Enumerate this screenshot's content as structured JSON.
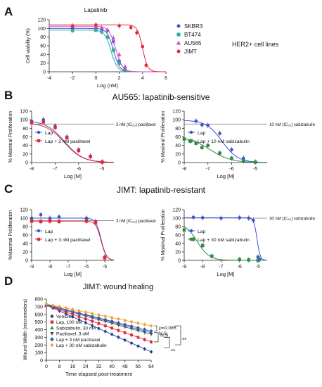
{
  "colors": {
    "blue": "#3b55c8",
    "green": "#2f8a4a",
    "teal": "#34a6a0",
    "magenta": "#c34bcf",
    "red": "#e2263a",
    "orange": "#f2a233",
    "gray": "#555555",
    "darkblue": "#1f3f9a"
  },
  "panels": {
    "A": {
      "letter": "A",
      "title": "Lapatinib",
      "note": "HER2+ cell lines"
    },
    "B": {
      "letter": "B",
      "heading": "AU565: lapatinib-sensitive"
    },
    "C": {
      "letter": "C",
      "heading": "JIMT: lapatinib-resistant"
    },
    "D": {
      "letter": "D",
      "heading": "JIMT: wound healing"
    }
  },
  "chart_data": [
    {
      "id": "A",
      "type": "line",
      "title": "Lapatinib",
      "xlabel": "Log (nM)",
      "ylabel": "Cell viability (%)",
      "xlim": [
        -4,
        6
      ],
      "ylim": [
        0,
        120
      ],
      "xticks": [
        -4,
        -2,
        0,
        2,
        4,
        6
      ],
      "yticks": [
        0,
        20,
        40,
        60,
        80,
        100,
        120
      ],
      "legend_position": "right",
      "series": [
        {
          "name": "SKBR3",
          "color": "#3b55c8",
          "marker": "circle",
          "logIC50": 1.5,
          "top": 100,
          "hill": 1.6,
          "points": [
            [
              -2,
              100
            ],
            [
              0,
              101
            ],
            [
              0.5,
              99
            ],
            [
              1,
              95
            ],
            [
              1.5,
              70
            ],
            [
              2,
              25
            ],
            [
              2.5,
              6
            ]
          ]
        },
        {
          "name": "BT474",
          "color": "#34a6a0",
          "marker": "square",
          "logIC50": 1.3,
          "top": 96,
          "hill": 1.6,
          "points": [
            [
              -2,
              95
            ],
            [
              0,
              96
            ],
            [
              0.5,
              92
            ],
            [
              1,
              80
            ],
            [
              1.5,
              50
            ],
            [
              2,
              20
            ],
            [
              2.5,
              8
            ]
          ]
        },
        {
          "name": "AU565",
          "color": "#c34bcf",
          "marker": "triangle",
          "logIC50": 1.7,
          "top": 105,
          "hill": 1.5,
          "points": [
            [
              -2,
              105
            ],
            [
              0,
              104
            ],
            [
              0.5,
              102
            ],
            [
              1,
              96
            ],
            [
              1.5,
              78
            ],
            [
              2,
              40
            ],
            [
              2.5,
              12
            ]
          ]
        },
        {
          "name": "JIMT",
          "color": "#e2263a",
          "marker": "circle",
          "logIC50": 4.0,
          "top": 108,
          "hill": 2.0,
          "points": [
            [
              -2,
              106
            ],
            [
              0,
              108
            ],
            [
              2,
              106
            ],
            [
              3,
              102
            ],
            [
              3.5,
              90
            ],
            [
              4,
              58
            ],
            [
              4.3,
              15
            ]
          ]
        }
      ]
    },
    {
      "id": "B1",
      "type": "line",
      "xlabel": "Log [M]",
      "ylabel": "% Maximal Proliferation",
      "xlim": [
        -8,
        -4.5
      ],
      "ylim": [
        0,
        120
      ],
      "xticks": [
        -8,
        -7,
        -6,
        -5
      ],
      "yticks": [
        0,
        20,
        40,
        60,
        80,
        100,
        120
      ],
      "reference_line": {
        "y": 90,
        "label": "2 nM (IC₅₀) paclitaxel"
      },
      "legend_position": "right",
      "series": [
        {
          "name": "Lap",
          "color": "#3b55c8",
          "marker": "circle",
          "logIC50": -6.6,
          "top": 98,
          "bottom": 0,
          "hill": 1.1,
          "points": [
            [
              -8,
              97
            ],
            [
              -7.5,
              100
            ],
            [
              -7,
              85
            ],
            [
              -6.5,
              60
            ],
            [
              -6,
              30
            ],
            [
              -5.5,
              15
            ],
            [
              -5,
              2
            ]
          ]
        },
        {
          "name": "Lap + 2 nM paclitaxel",
          "color": "#e2263a",
          "marker": "square",
          "logIC50": -6.6,
          "top": 93,
          "bottom": 0,
          "hill": 1.1,
          "points": [
            [
              -8,
              93
            ],
            [
              -7.5,
              95
            ],
            [
              -7,
              82
            ],
            [
              -6.5,
              58
            ],
            [
              -6,
              28
            ],
            [
              -5.5,
              14
            ],
            [
              -5,
              1
            ]
          ]
        }
      ]
    },
    {
      "id": "B2",
      "type": "line",
      "xlabel": "Log [M]",
      "ylabel": "% Maximal Proliferation",
      "xlim": [
        -8,
        -4.5
      ],
      "ylim": [
        0,
        120
      ],
      "xticks": [
        -8,
        -7,
        -6,
        -5
      ],
      "yticks": [
        0,
        20,
        40,
        60,
        80,
        100,
        120
      ],
      "reference_line": {
        "y": 90,
        "label": "10 nM (IC₅₀) sabizabulin"
      },
      "legend_position": "right",
      "series": [
        {
          "name": "Lap",
          "color": "#3b55c8",
          "marker": "circle",
          "logIC50": -6.4,
          "top": 99,
          "bottom": 0,
          "hill": 1.3,
          "points": [
            [
              -7.5,
              97
            ],
            [
              -7.25,
              88
            ],
            [
              -7,
              87
            ],
            [
              -6.5,
              68
            ],
            [
              -6,
              30
            ],
            [
              -5.5,
              10
            ],
            [
              -5,
              1
            ]
          ]
        },
        {
          "name": "Lap + 10 nM sabizabulin",
          "color": "#2f8a4a",
          "marker": "square",
          "logIC50": -6.9,
          "top": 60,
          "bottom": 0,
          "hill": 1.0,
          "points": [
            [
              -8,
              55
            ],
            [
              -7.75,
              50
            ],
            [
              -7.5,
              45
            ],
            [
              -7.25,
              35
            ],
            [
              -7,
              40
            ],
            [
              -6.5,
              22
            ],
            [
              -6,
              10
            ],
            [
              -5.5,
              4
            ],
            [
              -5,
              1
            ]
          ]
        }
      ]
    },
    {
      "id": "C1",
      "type": "line",
      "xlabel": "Log [M]",
      "ylabel": "%Maximal Proliferation",
      "xlim": [
        -9,
        -4.5
      ],
      "ylim": [
        0,
        120
      ],
      "xticks": [
        -9,
        -8,
        -7,
        -6,
        -5
      ],
      "yticks": [
        0,
        20,
        40,
        60,
        80,
        100,
        120
      ],
      "reference_line": {
        "y": 94,
        "label": "3 nM (IC₅₀) paclitaxel"
      },
      "legend_position": "right",
      "series": [
        {
          "name": "Lap",
          "color": "#3b55c8",
          "marker": "circle",
          "logIC50": -5.2,
          "top": 100,
          "bottom": 0,
          "hill": 3.0,
          "points": [
            [
              -9,
              100
            ],
            [
              -8.5,
              108
            ],
            [
              -8,
              100
            ],
            [
              -7.5,
              103
            ],
            [
              -6,
              100
            ],
            [
              -5.5,
              92
            ],
            [
              -5,
              8
            ]
          ]
        },
        {
          "name": "Lap + 3 nM paclitaxel",
          "color": "#e2263a",
          "marker": "square",
          "logIC50": -5.2,
          "top": 93,
          "bottom": 0,
          "hill": 3.0,
          "points": [
            [
              -9,
              93
            ],
            [
              -8.5,
              92
            ],
            [
              -8,
              93
            ],
            [
              -7.5,
              92
            ],
            [
              -6,
              93
            ],
            [
              -5.5,
              90
            ],
            [
              -5,
              6
            ]
          ]
        }
      ]
    },
    {
      "id": "C2",
      "type": "line",
      "xlabel": "Log [M]",
      "ylabel": "% Maximal Proliferation",
      "xlim": [
        -9,
        -4.5
      ],
      "ylim": [
        0,
        120
      ],
      "xticks": [
        -9,
        -8,
        -7,
        -6,
        -5
      ],
      "yticks": [
        0,
        20,
        40,
        60,
        80,
        100,
        120
      ],
      "reference_line": {
        "y": 100,
        "label": "30 nM (IC₅₀) sabizabulin"
      },
      "legend_position": "right",
      "series": [
        {
          "name": "Lap",
          "color": "#3b55c8",
          "marker": "circle",
          "logIC50": -5.05,
          "top": 101,
          "bottom": 0,
          "hill": 5.0,
          "points": [
            [
              -8.5,
              102
            ],
            [
              -8,
              101
            ],
            [
              -7,
              100
            ],
            [
              -6,
              101
            ],
            [
              -5.5,
              100
            ],
            [
              -5.25,
              95
            ],
            [
              -5,
              8
            ],
            [
              -4.9,
              2
            ]
          ]
        },
        {
          "name": "Lap + 30 nM sabizabulin",
          "color": "#2f8a4a",
          "marker": "square",
          "logIC50": -8.3,
          "top": 90,
          "bottom": 0,
          "hill": 1.3,
          "points": [
            [
              -9,
              72
            ],
            [
              -8.5,
              50
            ],
            [
              -8,
              35
            ],
            [
              -7.5,
              10
            ],
            [
              -6,
              2
            ],
            [
              -5.5,
              1
            ],
            [
              -5,
              0
            ]
          ]
        }
      ]
    },
    {
      "id": "D",
      "type": "line",
      "title": "JIMT: wound healing",
      "xlabel": "Time elapsed post-treatment",
      "ylabel": "Wound Width (micrometers)",
      "xlim": [
        0,
        64
      ],
      "ylim": [
        0,
        800
      ],
      "xticks": [
        0,
        8,
        16,
        24,
        32,
        40,
        48,
        56,
        64
      ],
      "yticks": [
        0,
        100,
        200,
        300,
        400,
        500,
        600,
        700,
        800
      ],
      "legend_position": "bottom-left",
      "series": [
        {
          "name": "Vehicle",
          "color": "#1f3f9a",
          "marker": "circle",
          "start": 720,
          "end": 110
        },
        {
          "name": "Lap, 100 nM",
          "color": "#e2263a",
          "marker": "square",
          "start": 720,
          "end": 240
        },
        {
          "name": "Sabizabulin, 30 nM",
          "color": "#2f8a4a",
          "marker": "triangle",
          "start": 730,
          "end": 360
        },
        {
          "name": "Paclitaxel, 3 nM",
          "color": "#555555",
          "marker": "triangle-down",
          "start": 720,
          "end": 340
        },
        {
          "name": "Lap + 3 nM paclitaxel",
          "color": "#3b55c8",
          "marker": "diamond",
          "start": 725,
          "end": 380
        },
        {
          "name": "Lap + 30 nM sabizabulin",
          "color": "#f2a233",
          "marker": "circle",
          "start": 735,
          "end": 450
        }
      ],
      "annotations": [
        {
          "text": "p=0.085",
          "style": "italic-p"
        },
        {
          "text": "N.S."
        },
        {
          "text": "N.S."
        },
        {
          "text": "**"
        },
        {
          "text": "**"
        }
      ]
    }
  ]
}
